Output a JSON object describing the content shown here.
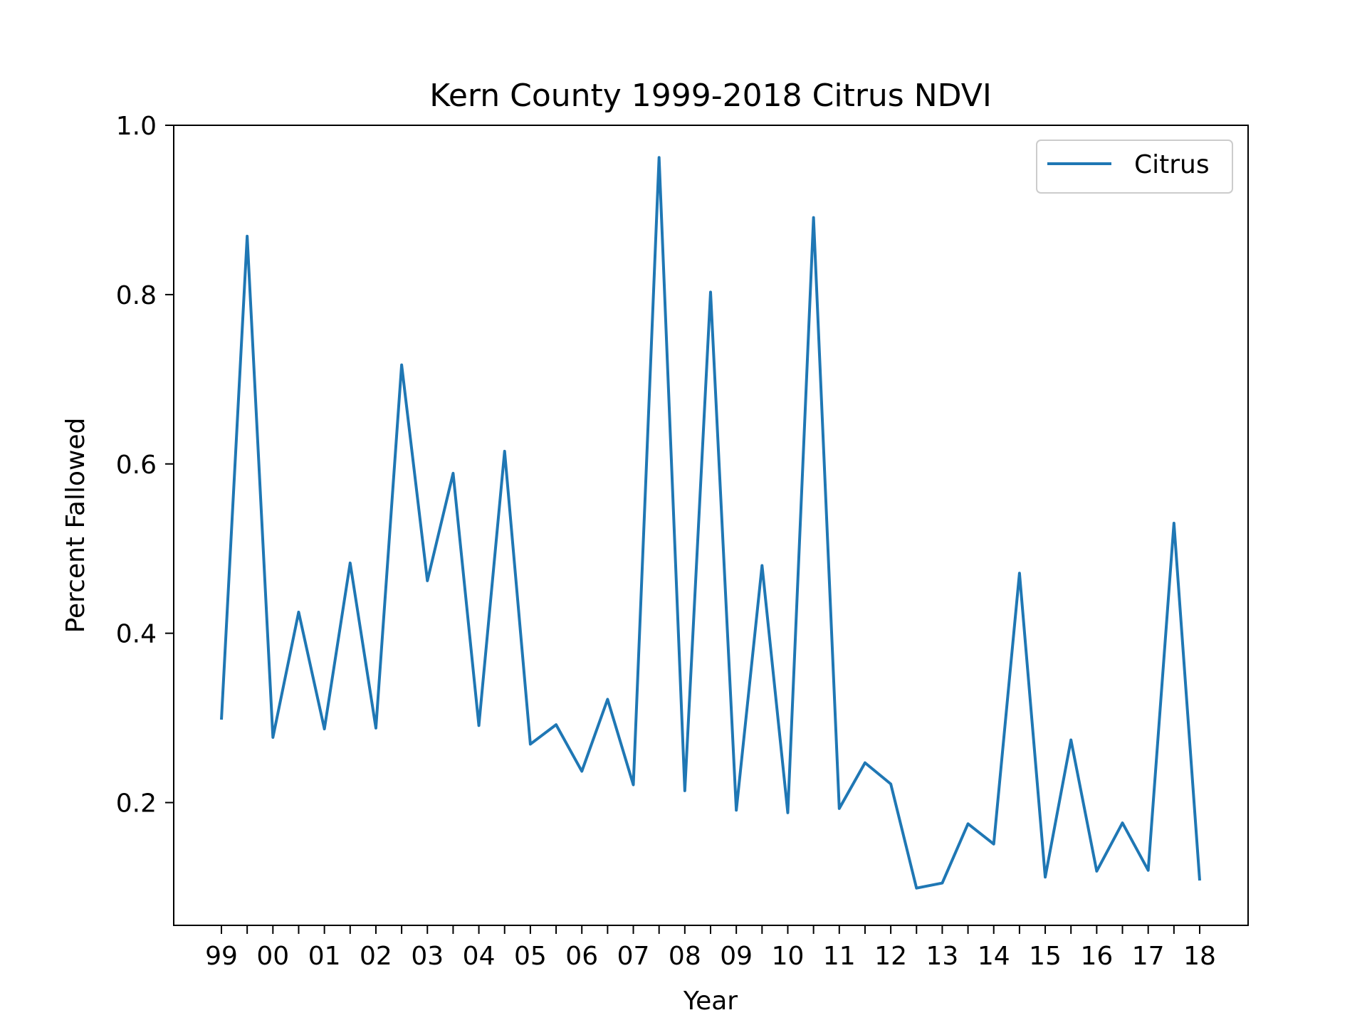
{
  "chart_data": {
    "type": "line",
    "title": "Kern County 1999-2018 Citrus NDVI",
    "xlabel": "Year",
    "ylabel": "Percent Fallowed",
    "xticks": [
      "99",
      "00",
      "01",
      "02",
      "03",
      "04",
      "05",
      "06",
      "07",
      "08",
      "09",
      "10",
      "11",
      "12",
      "13",
      "14",
      "15",
      "16",
      "17",
      "18"
    ],
    "yticks": [
      "0.2",
      "0.4",
      "0.6",
      "0.8",
      "1.0"
    ],
    "ylim": [
      0.055,
      1.0
    ],
    "grid": false,
    "legend": "top-right",
    "series": [
      {
        "name": "Citrus",
        "color": "#1f77b4",
        "values": [
          0.298,
          0.869,
          0.277,
          0.425,
          0.287,
          0.483,
          0.288,
          0.717,
          0.462,
          0.589,
          0.291,
          0.615,
          0.269,
          0.292,
          0.237,
          0.322,
          0.221,
          0.962,
          0.214,
          0.803,
          0.191,
          0.48,
          0.188,
          0.891,
          0.193,
          0.247,
          0.222,
          0.099,
          0.105,
          0.175,
          0.151,
          0.471,
          0.112,
          0.274,
          0.119,
          0.176,
          0.12,
          0.53,
          0.108
        ]
      }
    ]
  }
}
